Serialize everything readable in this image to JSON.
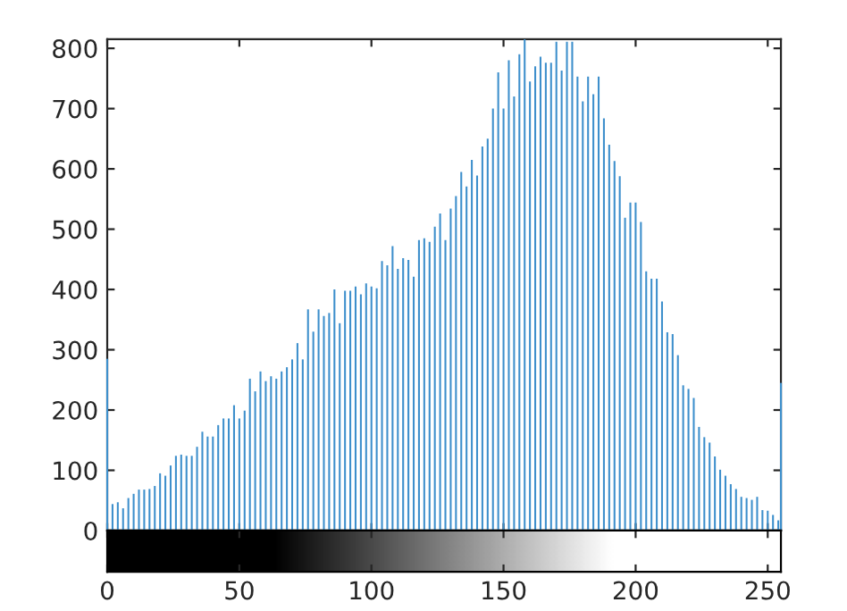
{
  "chart_data": {
    "type": "bar",
    "x": [
      0,
      2,
      4,
      6,
      8,
      10,
      12,
      14,
      16,
      18,
      20,
      22,
      24,
      26,
      28,
      30,
      32,
      34,
      36,
      38,
      40,
      42,
      44,
      46,
      48,
      50,
      52,
      54,
      56,
      58,
      60,
      62,
      64,
      66,
      68,
      70,
      72,
      74,
      76,
      78,
      80,
      82,
      84,
      86,
      88,
      90,
      92,
      94,
      96,
      98,
      100,
      102,
      104,
      106,
      108,
      110,
      112,
      114,
      116,
      118,
      120,
      122,
      124,
      126,
      128,
      130,
      132,
      134,
      136,
      138,
      140,
      142,
      144,
      146,
      148,
      150,
      152,
      154,
      156,
      158,
      160,
      162,
      164,
      166,
      168,
      170,
      172,
      174,
      176,
      178,
      180,
      182,
      184,
      186,
      188,
      190,
      192,
      194,
      196,
      198,
      200,
      202,
      204,
      206,
      208,
      210,
      212,
      214,
      216,
      218,
      220,
      222,
      224,
      226,
      228,
      230,
      232,
      234,
      236,
      238,
      240,
      242,
      244,
      246,
      248,
      250,
      252,
      254,
      255
    ],
    "values": [
      285,
      44,
      47,
      37,
      54,
      61,
      68,
      68,
      69,
      74,
      95,
      91,
      108,
      124,
      126,
      124,
      124,
      139,
      164,
      156,
      156,
      175,
      186,
      186,
      208,
      186,
      199,
      252,
      231,
      264,
      248,
      256,
      252,
      264,
      271,
      284,
      311,
      284,
      367,
      330,
      367,
      356,
      361,
      400,
      344,
      398,
      398,
      405,
      392,
      410,
      405,
      402,
      447,
      440,
      472,
      434,
      452,
      449,
      421,
      482,
      485,
      479,
      504,
      526,
      482,
      534,
      555,
      595,
      571,
      615,
      589,
      637,
      650,
      700,
      760,
      700,
      780,
      720,
      790,
      815,
      745,
      770,
      786,
      776,
      776,
      811,
      763,
      811,
      811,
      753,
      712,
      753,
      724,
      753,
      684,
      640,
      613,
      588,
      519,
      544,
      544,
      512,
      430,
      418,
      418,
      380,
      329,
      326,
      291,
      241,
      235,
      220,
      172,
      155,
      146,
      123,
      101,
      91,
      77,
      69,
      56,
      54,
      51,
      56,
      34,
      33,
      26,
      17,
      245
    ],
    "color": "#3d8fcc",
    "xlim": [
      0,
      255
    ],
    "xticks": [
      0,
      50,
      100,
      150,
      200,
      250
    ],
    "ylim": [
      0,
      815
    ],
    "yticks": [
      0,
      100,
      200,
      300,
      400,
      500,
      600,
      700,
      800
    ],
    "grid": false
  }
}
